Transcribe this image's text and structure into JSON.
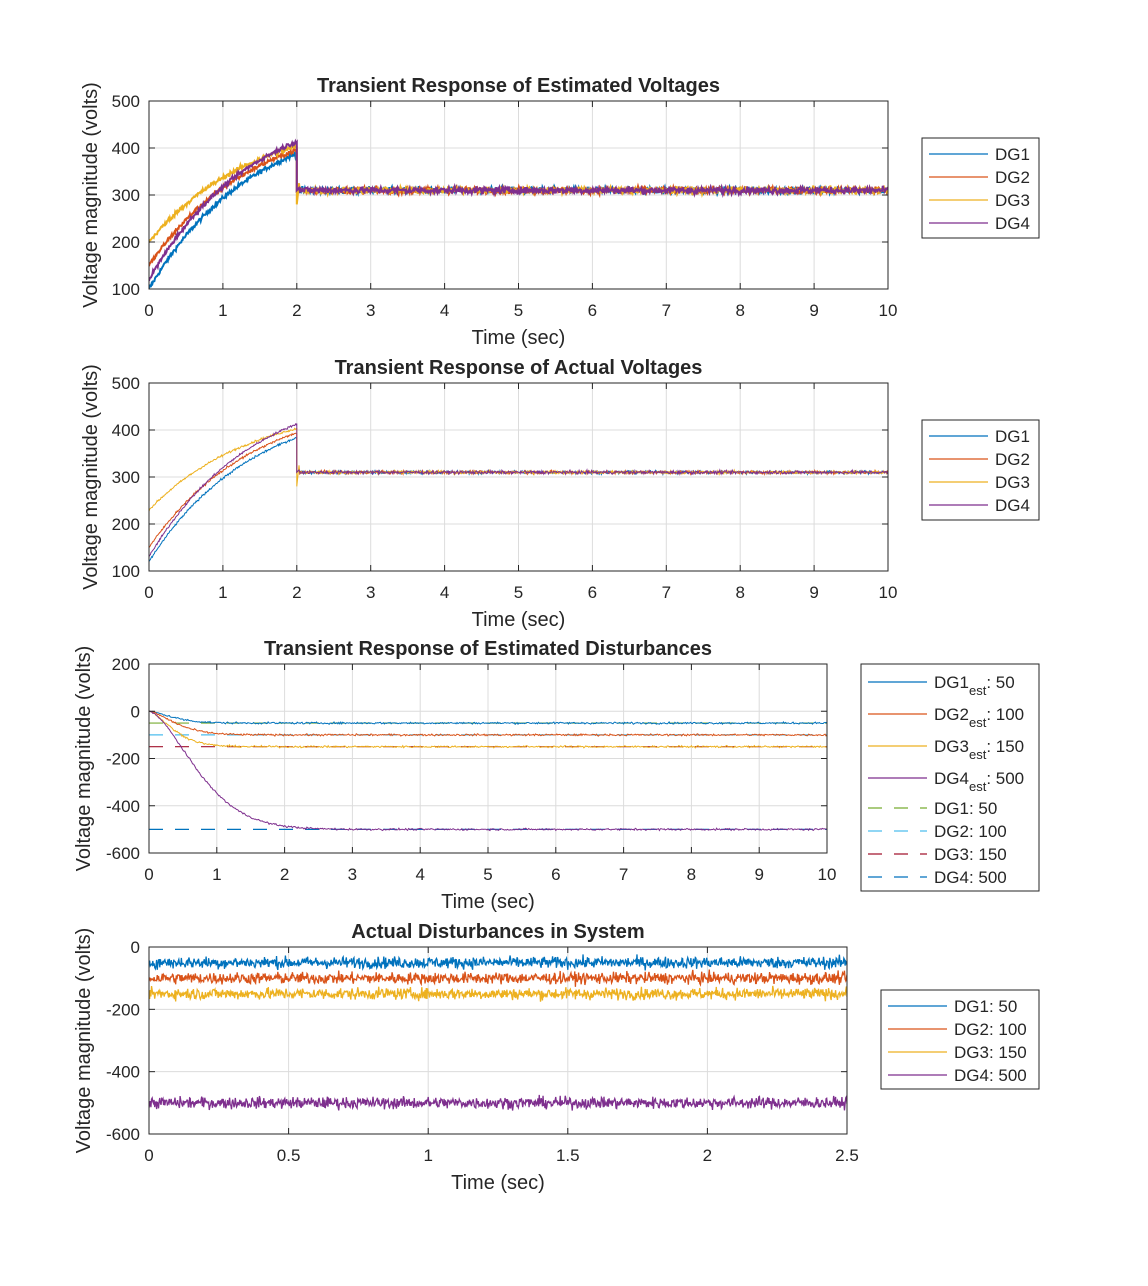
{
  "chart_data": [
    {
      "type": "line",
      "title": "Transient Response of Estimated Voltages",
      "xlabel": "Time (sec)",
      "ylabel": "Voltage magnitude (volts)",
      "xlim": [
        0,
        10
      ],
      "ylim": [
        100,
        500
      ],
      "xticks": [
        "0",
        "1",
        "2",
        "3",
        "4",
        "5",
        "6",
        "7",
        "8",
        "9",
        "10"
      ],
      "yticks": [
        "100",
        "200",
        "300",
        "400",
        "500"
      ],
      "grid": true,
      "legend_position": "outside-right",
      "series": [
        {
          "name": "DG1",
          "color": "#0072BD",
          "start": 100,
          "peak_at_2s": 388,
          "settle": 310
        },
        {
          "name": "DG2",
          "color": "#D95319",
          "start": 150,
          "peak_at_2s": 396,
          "settle": 310
        },
        {
          "name": "DG3",
          "color": "#EDB120",
          "start": 200,
          "peak_at_2s": 404,
          "settle": 310
        },
        {
          "name": "DG4",
          "color": "#7E2F8E",
          "start": 120,
          "peak_at_2s": 414,
          "settle": 310
        }
      ]
    },
    {
      "type": "line",
      "title": "Transient Response of Actual Voltages",
      "xlabel": "Time (sec)",
      "ylabel": "Voltage magnitude (volts)",
      "xlim": [
        0,
        10
      ],
      "ylim": [
        100,
        500
      ],
      "xticks": [
        "0",
        "1",
        "2",
        "3",
        "4",
        "5",
        "6",
        "7",
        "8",
        "9",
        "10"
      ],
      "yticks": [
        "100",
        "200",
        "300",
        "400",
        "500"
      ],
      "grid": true,
      "legend_position": "outside-right",
      "series": [
        {
          "name": "DG1",
          "color": "#0072BD",
          "start": 120,
          "peak_at_2s": 384,
          "settle": 310
        },
        {
          "name": "DG2",
          "color": "#D95319",
          "start": 150,
          "peak_at_2s": 394,
          "settle": 310
        },
        {
          "name": "DG3",
          "color": "#EDB120",
          "start": 230,
          "peak_at_2s": 403,
          "settle": 310
        },
        {
          "name": "DG4",
          "color": "#7E2F8E",
          "start": 130,
          "peak_at_2s": 413,
          "settle": 310
        }
      ]
    },
    {
      "type": "line",
      "title": "Transient Response of Estimated Disturbances",
      "xlabel": "Time (sec)",
      "ylabel": "Voltage magnitude (volts)",
      "xlim": [
        0,
        10
      ],
      "ylim": [
        -600,
        200
      ],
      "xticks": [
        "0",
        "1",
        "2",
        "3",
        "4",
        "5",
        "6",
        "7",
        "8",
        "9",
        "10"
      ],
      "yticks": [
        "-600",
        "-400",
        "-200",
        "0",
        "200"
      ],
      "grid": true,
      "legend_position": "outside-right",
      "series": [
        {
          "name": "DG1est: 50",
          "legend_base": "DG1",
          "legend_sub": "est",
          "legend_rest": ": 50",
          "color": "#0072BD",
          "style": "solid",
          "final": -50
        },
        {
          "name": "DG2est: 100",
          "legend_base": "DG2",
          "legend_sub": "est",
          "legend_rest": ": 100",
          "color": "#D95319",
          "style": "solid",
          "final": -100
        },
        {
          "name": "DG3est: 150",
          "legend_base": "DG3",
          "legend_sub": "est",
          "legend_rest": ": 150",
          "color": "#EDB120",
          "style": "solid",
          "final": -150
        },
        {
          "name": "DG4est: 500",
          "legend_base": "DG4",
          "legend_sub": "est",
          "legend_rest": ": 500",
          "color": "#7E2F8E",
          "style": "solid",
          "final": -500
        },
        {
          "name": "DG1: 50",
          "legend_base": "DG1: 50",
          "legend_sub": "",
          "legend_rest": "",
          "color": "#77AC30",
          "style": "dashed",
          "final": -50
        },
        {
          "name": "DG2: 100",
          "legend_base": "DG2: 100",
          "legend_sub": "",
          "legend_rest": "",
          "color": "#4DBEEE",
          "style": "dashed",
          "final": -100
        },
        {
          "name": "DG3: 150",
          "legend_base": "DG3: 150",
          "legend_sub": "",
          "legend_rest": "",
          "color": "#A2142F",
          "style": "dashed",
          "final": -150
        },
        {
          "name": "DG4: 500",
          "legend_base": "DG4: 500",
          "legend_sub": "",
          "legend_rest": "",
          "color": "#0072BD",
          "style": "dashed",
          "final": -500
        }
      ]
    },
    {
      "type": "line",
      "title": "Actual Disturbances in System",
      "xlabel": "Time (sec)",
      "ylabel": "Voltage magnitude (volts)",
      "xlim": [
        0,
        2.5
      ],
      "ylim": [
        -600,
        0
      ],
      "xticks": [
        "0",
        "0.5",
        "1",
        "1.5",
        "2",
        "2.5"
      ],
      "yticks": [
        "-600",
        "-400",
        "-200",
        "0"
      ],
      "grid": true,
      "legend_position": "outside-right",
      "series": [
        {
          "name": "DG1: 50",
          "color": "#0072BD",
          "level": -50
        },
        {
          "name": "DG2: 100",
          "color": "#D95319",
          "level": -100
        },
        {
          "name": "DG3: 150",
          "color": "#EDB120",
          "level": -150
        },
        {
          "name": "DG4: 500",
          "color": "#7E2F8E",
          "level": -500
        }
      ]
    }
  ]
}
